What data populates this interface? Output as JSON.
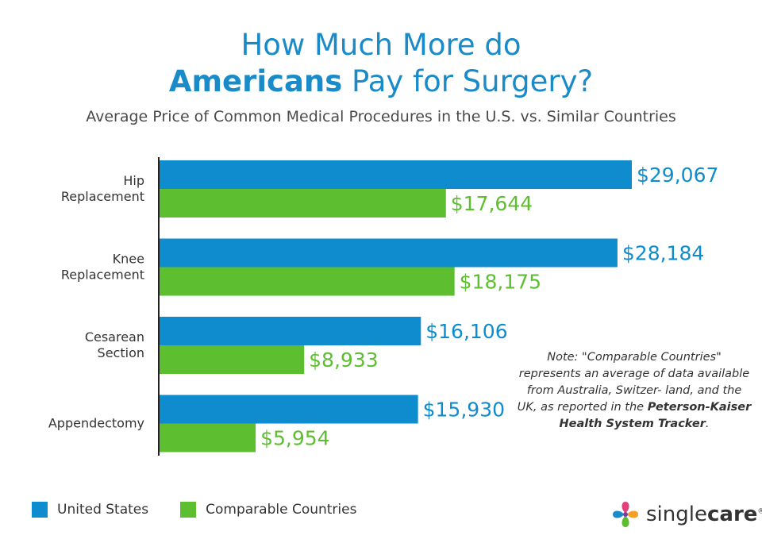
{
  "title": {
    "line1": "How Much More do",
    "line2_bold": "Americans",
    "line2_rest": " Pay for Surgery?"
  },
  "subtitle": "Average Price of Common Medical Procedures in the U.S. vs. Similar Countries",
  "chart_data": {
    "type": "bar",
    "orientation": "horizontal",
    "categories": [
      [
        "Hip",
        "Replacement"
      ],
      [
        "Knee",
        "Replacement"
      ],
      [
        "Cesarean",
        "Section"
      ],
      [
        "Appendectomy"
      ]
    ],
    "series": [
      {
        "name": "United States",
        "color": "#0f8ccd",
        "values": [
          29067,
          28184,
          16106,
          15930
        ],
        "labels": [
          "$29,067",
          "$28,184",
          "$16,106",
          "$15,930"
        ]
      },
      {
        "name": "Comparable Countries",
        "color": "#5dbf2f",
        "values": [
          17644,
          18175,
          8933,
          5954
        ],
        "labels": [
          "$17,644",
          "$18,175",
          "$8,933",
          "$5,954"
        ]
      }
    ],
    "xlim": [
      0,
      29067
    ],
    "grid": false,
    "legend": "bottom-left"
  },
  "note": {
    "text": "Note: \"Comparable Countries\" represents an average of data available from Australia, Switzer- land, and the UK, as reported in the",
    "bold": "Peterson-Kaiser Health System Tracker",
    "end": "."
  },
  "logo": {
    "text_light": "single",
    "text_bold": "care",
    "mark": "®"
  }
}
